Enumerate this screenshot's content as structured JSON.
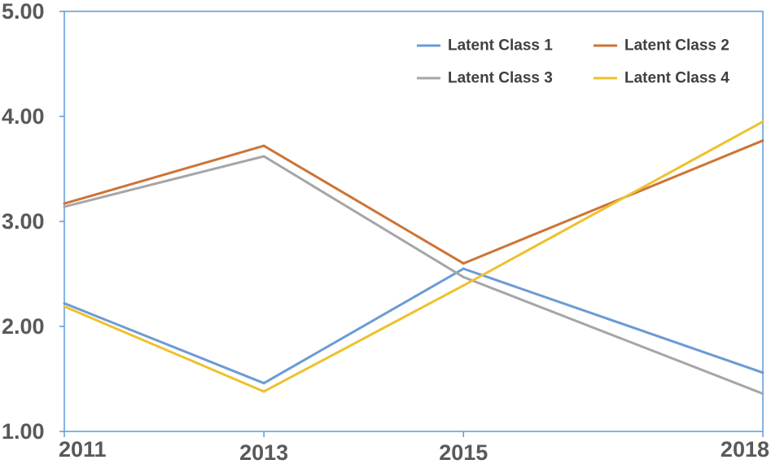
{
  "chart_data": {
    "type": "line",
    "title": "",
    "xlabel": "",
    "ylabel": "",
    "x": [
      2011,
      2013,
      2015,
      2018
    ],
    "x_tick_labels": [
      "2011",
      "2013",
      "2015",
      "2018"
    ],
    "ylim": [
      1.0,
      5.0
    ],
    "y_ticks": [
      1.0,
      2.0,
      3.0,
      4.0,
      5.0
    ],
    "y_tick_labels": [
      "1.00",
      "2.00",
      "3.00",
      "4.00",
      "5.00"
    ],
    "grid": false,
    "legend_position": "top-right",
    "series": [
      {
        "name": "Latent Class 1",
        "color": "#6b9bd4",
        "values": [
          2.22,
          1.46,
          2.55,
          1.56
        ]
      },
      {
        "name": "Latent Class 2",
        "color": "#cc7436",
        "values": [
          3.17,
          3.72,
          2.6,
          3.77
        ]
      },
      {
        "name": "Latent Class 3",
        "color": "#a6a6a6",
        "values": [
          3.14,
          3.62,
          2.47,
          1.36
        ]
      },
      {
        "name": "Latent Class 4",
        "color": "#eec12e",
        "values": [
          2.19,
          1.38,
          2.39,
          3.95
        ]
      }
    ]
  }
}
